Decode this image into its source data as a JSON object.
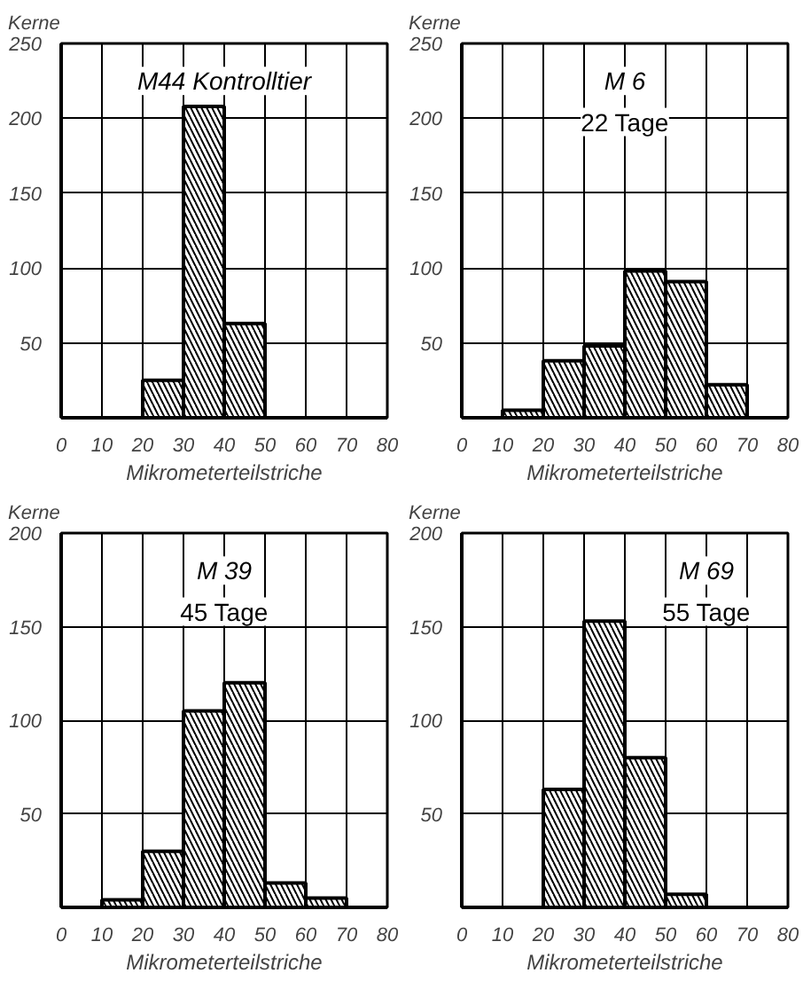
{
  "chart_data": [
    {
      "type": "histogram",
      "title": "M44 Kontrolltier",
      "xlabel": "Mikrometerteilstriche",
      "ylabel": "Kerne",
      "bins": [
        0,
        10,
        20,
        30,
        40,
        50,
        60,
        70,
        80
      ],
      "values": [
        0,
        0,
        25,
        208,
        63,
        0,
        0,
        0
      ],
      "color": "#000000",
      "xlim": [
        0,
        80
      ],
      "ylim": [
        0,
        250
      ],
      "xticks": [
        0,
        10,
        20,
        30,
        40,
        50,
        60,
        70,
        80
      ],
      "yticks": [
        50,
        100,
        150,
        200,
        250
      ],
      "grid": true
    },
    {
      "type": "histogram",
      "title": "M 6",
      "subtitle": "22 Tage",
      "xlabel": "Mikrometerteilstriche",
      "ylabel": "Kerne",
      "bins": [
        0,
        10,
        20,
        30,
        40,
        50,
        60,
        70,
        80
      ],
      "values": [
        0,
        5,
        38,
        48,
        98,
        91,
        22,
        0
      ],
      "color": "#000000",
      "xlim": [
        0,
        80
      ],
      "ylim": [
        0,
        250
      ],
      "xticks": [
        0,
        10,
        20,
        30,
        40,
        50,
        60,
        70,
        80
      ],
      "yticks": [
        50,
        100,
        150,
        200,
        250
      ],
      "grid": true
    },
    {
      "type": "histogram",
      "title": "M 39",
      "subtitle": "45 Tage",
      "xlabel": "Mikrometerteilstriche",
      "ylabel": "Kerne",
      "bins": [
        0,
        10,
        20,
        30,
        40,
        50,
        60,
        70,
        80
      ],
      "values": [
        0,
        4,
        30,
        105,
        120,
        13,
        5,
        0
      ],
      "color": "#000000",
      "xlim": [
        0,
        80
      ],
      "ylim": [
        0,
        200
      ],
      "xticks": [
        0,
        10,
        20,
        30,
        40,
        50,
        60,
        70,
        80
      ],
      "yticks": [
        50,
        100,
        150,
        200
      ],
      "grid": true
    },
    {
      "type": "histogram",
      "title": "M 69",
      "subtitle": "55 Tage",
      "xlabel": "Mikrometerteilstriche",
      "ylabel": "Kerne",
      "bins": [
        0,
        10,
        20,
        30,
        40,
        50,
        60,
        70,
        80
      ],
      "values": [
        0,
        0,
        63,
        153,
        80,
        7,
        0,
        0
      ],
      "color": "#000000",
      "xlim": [
        0,
        80
      ],
      "ylim": [
        0,
        200
      ],
      "xticks": [
        0,
        10,
        20,
        30,
        40,
        50,
        60,
        70,
        80
      ],
      "yticks": [
        50,
        100,
        150,
        200
      ],
      "grid": true
    }
  ]
}
